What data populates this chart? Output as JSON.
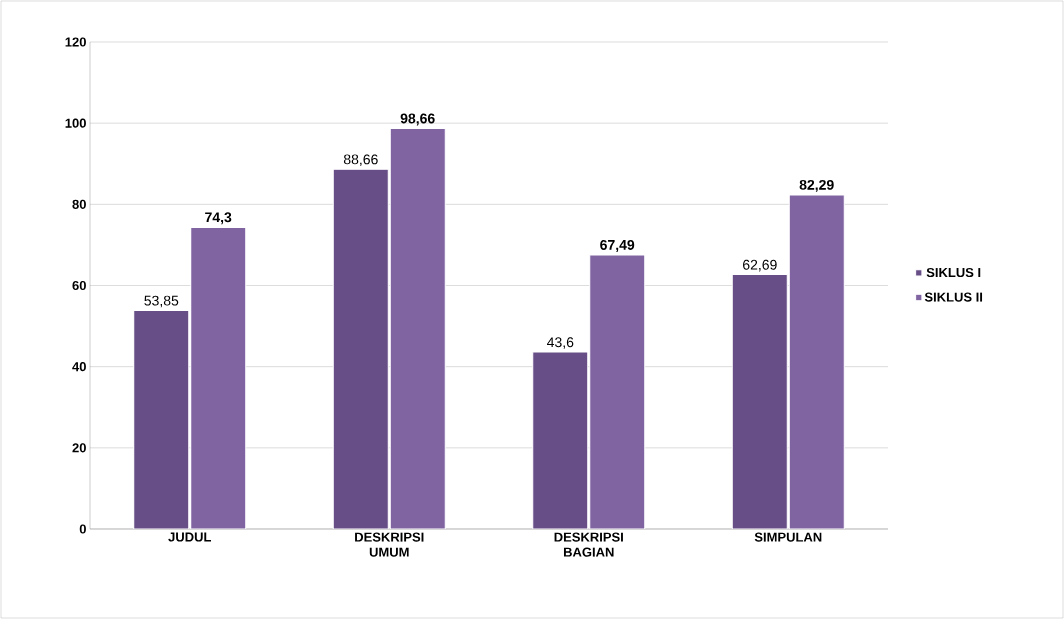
{
  "chart_data": {
    "type": "bar",
    "categories": [
      "JUDUL",
      "DESKRIPSI UMUM",
      "DESKRIPSI BAGIAN",
      "SIMPULAN"
    ],
    "series": [
      {
        "name": "SIKLUS I",
        "color": "#674e86",
        "values": [
          53.85,
          88.66,
          43.6,
          62.69
        ],
        "value_labels": [
          "53,85",
          "88,66",
          "43,6",
          "62,69"
        ]
      },
      {
        "name": "SIKLUS II",
        "color": "#8064a2",
        "values": [
          74.3,
          98.66,
          67.49,
          82.29
        ],
        "value_labels": [
          "74,3",
          "98,66",
          "67,49",
          "82,29"
        ]
      }
    ],
    "ylim": [
      0,
      120
    ],
    "yticks": [
      0,
      20,
      40,
      60,
      80,
      100,
      120
    ],
    "grid": "y",
    "legend": "right"
  }
}
